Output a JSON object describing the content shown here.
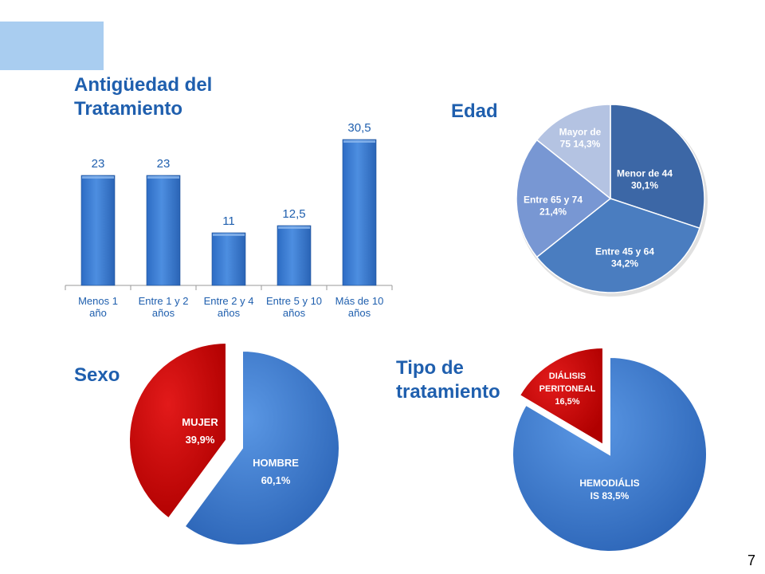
{
  "slide": {
    "page_number": "7"
  },
  "headings": {
    "antiguedad_line1": "Antigüedad del",
    "antiguedad_line2": "Tratamiento",
    "edad": "Edad",
    "sexo": "Sexo",
    "tipo_line1": "Tipo de",
    "tipo_line2": "tratamiento"
  },
  "colors": {
    "accent": "#1f5fae",
    "bar": "#3d7fd4",
    "red": "#cc0000",
    "heading": "#1f5fae"
  },
  "chart_data": [
    {
      "id": "antiguedad",
      "type": "bar",
      "title": "Antigüedad del Tratamiento",
      "categories": [
        [
          "Menos 1",
          "año"
        ],
        [
          "Entre 1 y 2",
          "años"
        ],
        [
          "Entre 2 y 4",
          "años"
        ],
        [
          "Entre 5 y 10",
          "años"
        ],
        [
          "Más de 10",
          "años"
        ]
      ],
      "values": [
        23,
        23,
        11,
        12.5,
        30.5
      ],
      "value_labels": [
        "23",
        "23",
        "11",
        "12,5",
        "30,5"
      ],
      "ylim": [
        0,
        36
      ],
      "grid": false
    },
    {
      "id": "edad",
      "type": "pie",
      "title": "Edad",
      "slices": [
        {
          "label": [
            "Menor de 44",
            "30,1%"
          ],
          "value": 30.1,
          "color": "#3c67a6"
        },
        {
          "label": [
            "Entre 45 y 64",
            "34,2%"
          ],
          "value": 34.2,
          "color": "#4a7dc0"
        },
        {
          "label": [
            "Entre 65 y 74",
            "21,4%"
          ],
          "value": 21.4,
          "color": "#7897d3"
        },
        {
          "label": [
            "Mayor de",
            "75  14,3%"
          ],
          "value": 14.3,
          "color": "#b4c3e2"
        }
      ]
    },
    {
      "id": "sexo",
      "type": "pie",
      "title": "Sexo",
      "slices": [
        {
          "label": [
            "HOMBRE",
            "60,1%"
          ],
          "value": 60.1,
          "color": "#3d7fd4"
        },
        {
          "label": [
            "MUJER",
            "39,9%"
          ],
          "value": 39.9,
          "color": "#cc0000"
        }
      ]
    },
    {
      "id": "tipo",
      "type": "pie",
      "title": "Tipo de tratamiento",
      "slices": [
        {
          "label": [
            "HEMODIÁLIS",
            "IS 83,5%"
          ],
          "value": 83.5,
          "color": "#3d7fd4"
        },
        {
          "label": [
            "DIÁLISIS",
            "PERITONEAL",
            "16,5%"
          ],
          "value": 16.5,
          "color": "#cc0000"
        }
      ]
    }
  ]
}
